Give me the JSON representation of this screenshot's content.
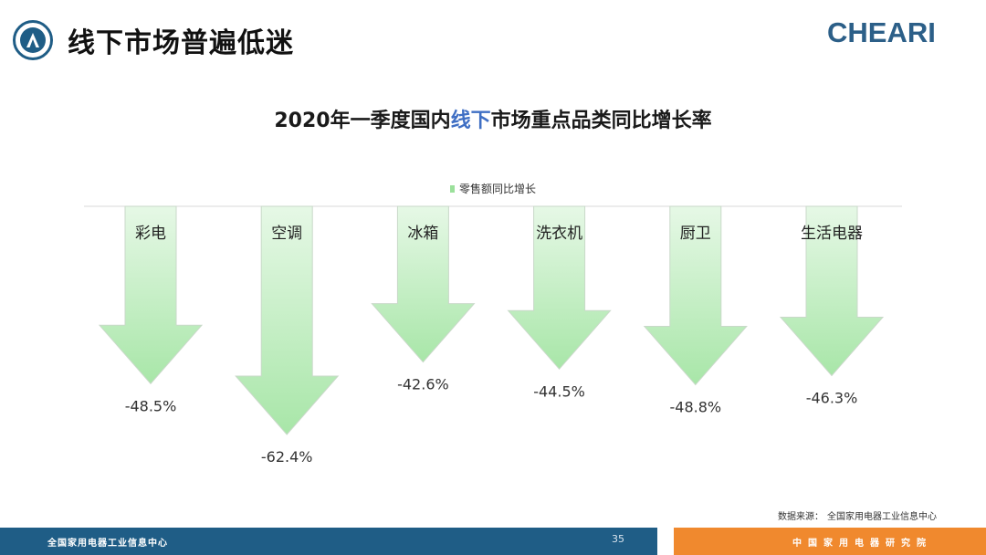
{
  "header": {
    "title": "线下市场普遍低迷",
    "brand": "CHEARI"
  },
  "chart_title": {
    "prefix": "2020年一季度国内",
    "highlight": "线下",
    "suffix": "市场重点品类同比增长率"
  },
  "colors": {
    "arrow_fill": "#a8e6a8",
    "arrow_stroke": "#c9d9c9",
    "title_highlight": "#3f6fc4",
    "footer_blue": "#1f5d86",
    "footer_orange": "#f0892e",
    "brand": "#2c5f88"
  },
  "chart_data": {
    "type": "bar",
    "categories": [
      "彩电",
      "空调",
      "冰箱",
      "洗衣机",
      "厨卫",
      "生活电器"
    ],
    "series": [
      {
        "name": "零售额同比增长",
        "values": [
          -48.5,
          -62.4,
          -42.6,
          -44.5,
          -48.8,
          -46.3
        ]
      }
    ],
    "data_labels": [
      "-48.5%",
      "-62.4%",
      "-42.6%",
      "-44.5%",
      "-48.8%",
      "-46.3%"
    ],
    "legend_position": "top",
    "grid": false
  },
  "source": {
    "label": "数据来源：",
    "value": "全国家用电器工业信息中心"
  },
  "footer": {
    "left": "全国家用电器工业信息中心",
    "page": "35",
    "right": "中国家用电器研究院"
  }
}
